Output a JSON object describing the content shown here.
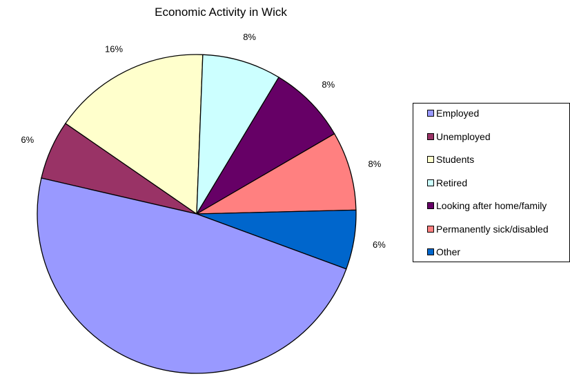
{
  "chart_data": {
    "type": "pie",
    "title": "Economic Activity in Wick",
    "slices": [
      {
        "label": "Unemployed",
        "value": 6,
        "display": "6%",
        "color": "#993366"
      },
      {
        "label": "Students",
        "value": 16,
        "display": "16%",
        "color": "#ffffcc"
      },
      {
        "label": "Retired",
        "value": 8,
        "display": "8%",
        "color": "#ccffff"
      },
      {
        "label": "Looking after home/family",
        "value": 8,
        "display": "8%",
        "color": "#660066"
      },
      {
        "label": "Permanently sick/disabled",
        "value": 8,
        "display": "8%",
        "color": "#ff8080"
      },
      {
        "label": "Other",
        "value": 6,
        "display": "6%",
        "color": "#0066cc"
      },
      {
        "label": "Employed",
        "value": 48,
        "display": "48%",
        "color": "#9999ff"
      }
    ],
    "legend": {
      "placement": "right",
      "items": [
        {
          "label": "Employed",
          "color": "#9999ff"
        },
        {
          "label": "Unemployed",
          "color": "#993366"
        },
        {
          "label": "Students",
          "color": "#ffffcc"
        },
        {
          "label": "Retired",
          "color": "#ccffff"
        },
        {
          "label": "Looking after home/family",
          "color": "#660066"
        },
        {
          "label": "Permanently sick/disabled",
          "color": "#ff8080"
        },
        {
          "label": "Other",
          "color": "#0066cc"
        }
      ]
    }
  }
}
